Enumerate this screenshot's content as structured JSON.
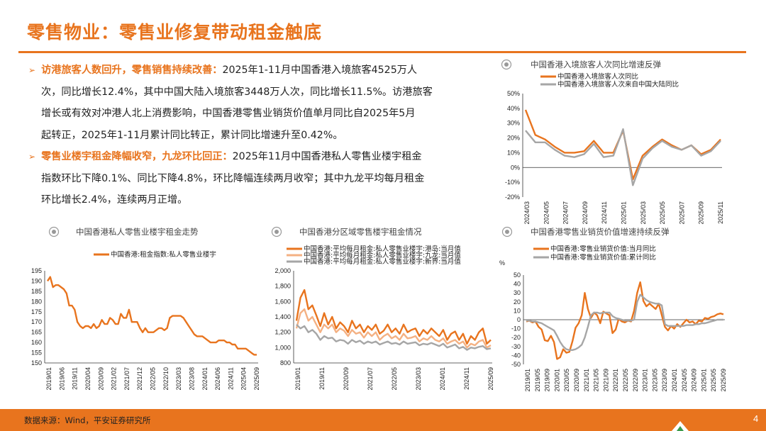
{
  "title": "零售物业：零售业修复带动租金触底",
  "bullets": [
    {
      "head": "访港旅客人数回升，零售销售持续改善：",
      "first": "2025年1-11月中国香港入境旅客4525万人",
      "lines": [
        "次，同比增长12.4%，其中中国大陆入境旅客3448万人次，同比增长11.5%。访港旅客",
        "增长或有效对冲港人北上消费影响，中国香港零售业销货价值单月同比自2025年5月",
        "起转正，2025年1-11月累计同比转正，累计同比增速升至0.42%。"
      ]
    },
    {
      "head": "零售业楼宇租金降幅收窄，九龙环比回正：",
      "first": "2025年11月中国香港私人零售业楼宇租金",
      "lines": [
        "指数环比下降0.1%、同比下降4.8%，环比降幅连续两月收窄；其中九龙平均每月租金",
        "环比增长2.4%，连续两月正增。"
      ]
    }
  ],
  "footer": {
    "source": "数据来源：Wind，平安证券研究所",
    "page": "4"
  },
  "colors": {
    "accent": "#e8741e",
    "series_orange": "#e8741e",
    "series_gray": "#a6a6a6",
    "series_peach": "#f4b183"
  },
  "chart_data": [
    {
      "id": "visitors",
      "type": "line",
      "title": "中国香港入境旅客人次同比增速反弹",
      "ylim": [
        -20,
        50
      ],
      "yticks": [
        -20,
        -10,
        0,
        10,
        20,
        30,
        40,
        50
      ],
      "ytick_labels": [
        "-20%",
        "-10%",
        "0%",
        "10%",
        "20%",
        "30%",
        "40%",
        "50%"
      ],
      "xtick_labels": [
        "2024/03",
        "2024/05",
        "2024/07",
        "2024/09",
        "2024/11",
        "2025/01",
        "2025/03",
        "2025/05",
        "2025/07",
        "2025/09",
        "2025/11"
      ],
      "x": [
        "2024/03",
        "2024/04",
        "2024/05",
        "2024/06",
        "2024/07",
        "2024/08",
        "2024/09",
        "2024/10",
        "2024/11",
        "2024/12",
        "2025/01",
        "2025/02",
        "2025/03",
        "2025/04",
        "2025/05",
        "2025/06",
        "2025/07",
        "2025/08",
        "2025/09",
        "2025/10",
        "2025/11"
      ],
      "series": [
        {
          "name": "中国香港入境旅客人次同比",
          "color": "#e8741e",
          "values": [
            39,
            22,
            19,
            14,
            10,
            10,
            11,
            18,
            10,
            10,
            25,
            -8,
            8,
            14,
            19,
            15,
            12,
            15,
            9,
            12,
            19
          ]
        },
        {
          "name": "中国香港入境旅客人次来自中国大陆同比",
          "color": "#a6a6a6",
          "values": [
            25,
            17,
            17,
            12,
            8,
            7,
            9,
            16,
            7,
            8,
            26,
            -12,
            6,
            13,
            18,
            14,
            12,
            15,
            8,
            11,
            18
          ]
        }
      ]
    },
    {
      "id": "rent_index",
      "type": "line",
      "title": "中国香港私人零售业楼宇租金走势",
      "ylim": [
        150,
        195
      ],
      "yticks": [
        150,
        155,
        160,
        165,
        170,
        175,
        180,
        185,
        190,
        195
      ],
      "xtick_labels": [
        "2019/01",
        "2019/06",
        "2019/11",
        "2020/04",
        "2020/09",
        "2021/02",
        "2021/07",
        "2021/12",
        "2022/05",
        "2022/10",
        "2023/03",
        "2023/08",
        "2024/01",
        "2024/06",
        "2024/11",
        "2025/04",
        "2025/09"
      ],
      "series": [
        {
          "name": "中国香港:租金指数:私人零售业楼宇",
          "color": "#e8741e",
          "values": [
            190,
            192,
            187,
            188,
            188,
            187,
            186,
            184,
            178,
            178,
            176,
            170,
            168,
            167,
            168,
            168,
            167,
            169,
            167,
            168,
            171,
            169,
            169,
            172,
            171,
            169,
            169,
            174,
            172,
            172,
            176,
            170,
            170,
            170,
            167,
            165,
            167,
            165,
            165,
            165,
            166,
            167,
            167,
            166,
            167,
            172,
            173,
            173,
            173,
            173,
            172,
            170,
            168,
            166,
            164,
            163,
            163,
            163,
            162,
            161,
            160,
            160,
            160,
            161,
            161,
            161,
            160,
            160,
            159,
            159,
            157,
            157,
            157,
            157,
            156,
            155,
            154,
            154
          ]
        }
      ]
    },
    {
      "id": "district_rent",
      "type": "line",
      "title": "中国香港分区域零售楼宇租金情况",
      "ylim": [
        800,
        2000
      ],
      "yticks": [
        800,
        1000,
        1200,
        1400,
        1600,
        1800,
        2000
      ],
      "ytick_labels": [
        "800",
        "1,000",
        "1,200",
        "1,400",
        "1,600",
        "1,800",
        "2,000"
      ],
      "xtick_labels": [
        "2019/01",
        "2019/11",
        "2020/09",
        "2021/07",
        "2022/05",
        "2023/03",
        "2024/01",
        "2024/11",
        "2025/09"
      ],
      "series": [
        {
          "name": "中国香港:平均每月租金:私人零售业楼宇:港岛:当月值",
          "color": "#e8741e",
          "values": [
            1350,
            1650,
            1750,
            1500,
            1550,
            1420,
            1280,
            1450,
            1300,
            1400,
            1250,
            1330,
            1280,
            1200,
            1350,
            1250,
            1300,
            1200,
            1280,
            1230,
            1300,
            1180,
            1220,
            1300,
            1200,
            1250,
            1180,
            1300,
            1200,
            1230,
            1250,
            1150,
            1230,
            1180,
            1250,
            1200,
            1150,
            1230,
            1100,
            1180,
            1210,
            1100,
            1180,
            1050,
            1150,
            1100,
            1200,
            1250,
            1050,
            1100
          ]
        },
        {
          "name": "中国香港:平均每月租金:私人零售业楼宇:九龙:当月值",
          "color": "#f4b183",
          "values": [
            1250,
            1450,
            1500,
            1350,
            1400,
            1300,
            1200,
            1300,
            1250,
            1300,
            1200,
            1250,
            1220,
            1150,
            1230,
            1180,
            1200,
            1130,
            1200,
            1150,
            1200,
            1100,
            1150,
            1180,
            1120,
            1150,
            1100,
            1180,
            1120,
            1130,
            1150,
            1080,
            1120,
            1100,
            1150,
            1100,
            1080,
            1120,
            1050,
            1080,
            1100,
            1050,
            1080,
            1000,
            1050,
            1030,
            1080,
            1100,
            1000,
            1030
          ]
        },
        {
          "name": "中国香港:平均每月租金:私人零售业楼宇:新界:当月值",
          "color": "#a6a6a6",
          "values": [
            1300,
            1250,
            1280,
            1200,
            1230,
            1180,
            1100,
            1150,
            1120,
            1130,
            1080,
            1100,
            1090,
            1050,
            1100,
            1070,
            1090,
            1050,
            1080,
            1060,
            1080,
            1040,
            1060,
            1080,
            1050,
            1060,
            1040,
            1080,
            1050,
            1060,
            1070,
            1030,
            1050,
            1040,
            1060,
            1040,
            1020,
            1050,
            1000,
            1020,
            1040,
            990,
            1010,
            970,
            1000,
            990,
            1010,
            1020,
            980,
            990
          ]
        }
      ]
    },
    {
      "id": "retail_sales",
      "type": "line",
      "title": "中国香港零售业销货价值增速持续反弹",
      "unit": "%",
      "ylim": [
        -50,
        50
      ],
      "yticks": [
        -50,
        -40,
        -30,
        -20,
        -10,
        0,
        10,
        20,
        30,
        40,
        50
      ],
      "xtick_labels": [
        "2019/01",
        "2019/05",
        "2019/09",
        "2020/01",
        "2020/05",
        "2020/09",
        "2021/01",
        "2021/05",
        "2021/09",
        "2022/01",
        "2022/05",
        "2022/09",
        "2023/01",
        "2023/05",
        "2023/09",
        "2024/01",
        "2024/05",
        "2024/09",
        "2025/01",
        "2025/05",
        "2025/09"
      ],
      "series": [
        {
          "name": "中国香港:零售业销货价值:当月同比",
          "color": "#e8741e",
          "values": [
            -2,
            -1,
            -3,
            -2,
            -8,
            -11,
            -23,
            -24,
            -18,
            -25,
            -44,
            -42,
            -33,
            -37,
            -36,
            -24,
            -9,
            -4,
            5,
            30,
            12,
            2,
            8,
            5,
            -4,
            9,
            7,
            5,
            -15,
            -11,
            1,
            -2,
            -3,
            -1,
            -2,
            10,
            30,
            42,
            21,
            15,
            18,
            15,
            12,
            18,
            5,
            -8,
            -12,
            -7,
            -10,
            -5,
            -8,
            -4,
            0,
            -3,
            -2,
            -5,
            -1,
            -2,
            2,
            1,
            3,
            4,
            6,
            7,
            6
          ]
        },
        {
          "name": "中国香港:零售业销货价值:累计同比",
          "color": "#a6a6a6",
          "values": [
            -1,
            -1,
            -2,
            -2,
            -3,
            -4,
            -6,
            -8,
            -10,
            -12,
            -18,
            -25,
            -30,
            -33,
            -34,
            -34,
            -33,
            -31,
            -28,
            -20,
            -8,
            5,
            8,
            8,
            7,
            8,
            8,
            8,
            4,
            2,
            1,
            0,
            -1,
            -1,
            -1,
            0,
            20,
            28,
            25,
            22,
            20,
            19,
            18,
            18,
            16,
            -5,
            -7,
            -7,
            -7,
            -7,
            -7,
            -7,
            -6,
            -6,
            -6,
            -5,
            -5,
            -4,
            -4,
            -3,
            -2,
            -1,
            0,
            0,
            0
          ]
        }
      ]
    }
  ]
}
